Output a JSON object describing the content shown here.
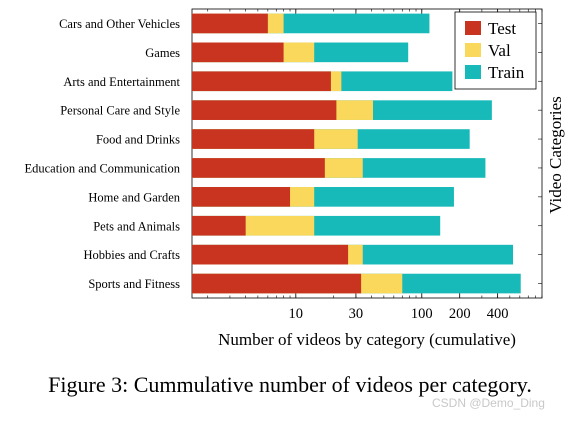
{
  "chart_data": {
    "type": "bar",
    "orientation": "horizontal",
    "stacked": true,
    "xscale": "log",
    "xlim": [
      1.5,
      900
    ],
    "xticks": [
      10,
      30,
      100,
      200,
      400
    ],
    "xlabel": "Number of videos by category (cumulative)",
    "ylabel": "Video Categories",
    "legend_position": "top-right",
    "categories": [
      "Cars and Other Vehicles",
      "Games",
      "Arts and Entertainment",
      "Personal Care and Style",
      "Food and Drinks",
      "Education and Communication",
      "Home and Garden",
      "Pets and Animals",
      "Hobbies and Crafts",
      "Sports and Fitness"
    ],
    "series": [
      {
        "name": "Test",
        "color": "#c8341f",
        "values": [
          6,
          8,
          19,
          21,
          14,
          17,
          9,
          4,
          26,
          33
        ]
      },
      {
        "name": "Val",
        "color": "#f9d85c",
        "values": [
          8,
          14,
          23,
          41,
          31,
          34,
          14,
          14,
          34,
          70
        ]
      },
      {
        "name": "Train",
        "color": "#17b9b9",
        "values": [
          115,
          78,
          175,
          360,
          240,
          320,
          180,
          140,
          530,
          610
        ]
      }
    ]
  },
  "caption": "Figure 3: Cummulative number of videos per category.",
  "watermark": "CSDN @Demo_Ding"
}
